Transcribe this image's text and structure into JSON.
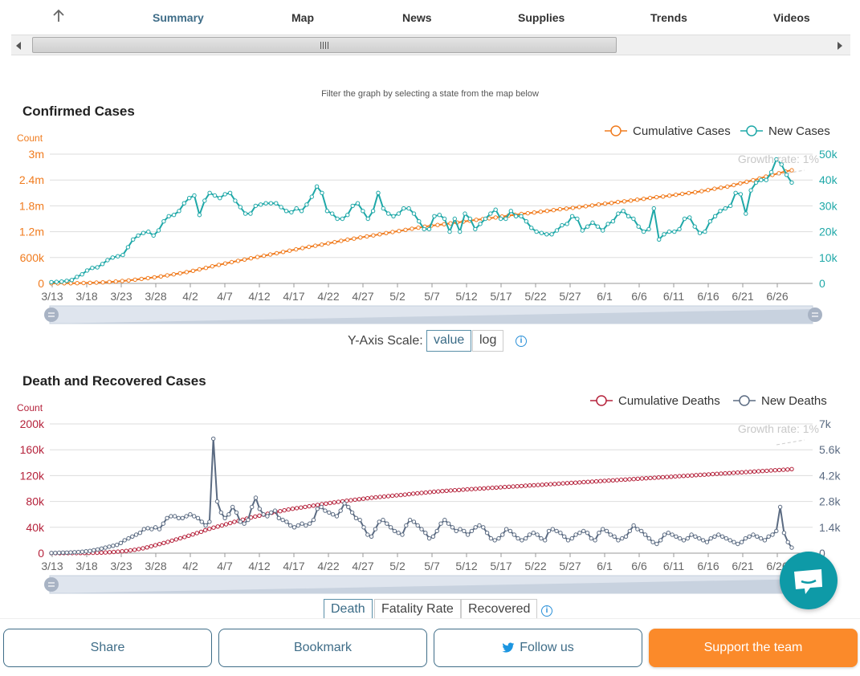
{
  "nav": {
    "items": [
      "Summary",
      "Map",
      "News",
      "Supplies",
      "Trends",
      "Videos"
    ],
    "active": "Summary"
  },
  "hint": "Filter the graph by selecting a state from the map below",
  "colors": {
    "orange": "#f07b1e",
    "teal": "#1fa8a8",
    "crimson": "#b5223b",
    "slate": "#5b6b82",
    "nav_active": "#3f6d88",
    "support": "#fb8a2a"
  },
  "confirmed": {
    "title": "Confirmed Cases",
    "legend": [
      "Cumulative Cases",
      "New Cases"
    ],
    "left_axis_title": "Count",
    "left_ticks": [
      "3m",
      "2.4m",
      "1.8m",
      "1.2m",
      "600k",
      "0"
    ],
    "right_ticks": [
      "50k",
      "40k",
      "30k",
      "20k",
      "10k",
      "0"
    ],
    "growth_label": "Growth rate: 1%",
    "y_scale_label": "Y-Axis Scale:",
    "y_scale_options": [
      "value",
      "log"
    ],
    "y_scale_selected": "value"
  },
  "deaths": {
    "title": "Death and Recovered Cases",
    "legend": [
      "Cumulative Deaths",
      "New Deaths"
    ],
    "left_axis_title": "Count",
    "left_ticks": [
      "200k",
      "160k",
      "120k",
      "80k",
      "40k",
      "0"
    ],
    "right_ticks": [
      "7k",
      "5.6k",
      "4.2k",
      "2.8k",
      "1.4k",
      "0"
    ],
    "growth_label": "Growth rate: 1%",
    "tabs": [
      "Death",
      "Fatality Rate",
      "Recovered"
    ],
    "tab_selected": "Death"
  },
  "x_ticks": [
    "3/13",
    "3/18",
    "3/23",
    "3/28",
    "4/2",
    "4/7",
    "4/12",
    "4/17",
    "4/22",
    "4/27",
    "5/2",
    "5/7",
    "5/12",
    "5/17",
    "5/22",
    "5/27",
    "6/1",
    "6/6",
    "6/11",
    "6/16",
    "6/21",
    "6/26"
  ],
  "chart_data": [
    {
      "type": "line",
      "title": "Confirmed Cases",
      "x_start": "3/13",
      "x_end": "6/30",
      "series": [
        {
          "name": "Cumulative Cases",
          "axis": "left",
          "ylim": [
            0,
            3000000
          ],
          "values": [
            2000,
            2500,
            3500,
            4500,
            6000,
            9000,
            13000,
            18000,
            25000,
            33000,
            43000,
            55000,
            69000,
            86000,
            104000,
            123000,
            142000,
            163000,
            186000,
            210000,
            235000,
            263000,
            293000,
            326000,
            360000,
            396000,
            431000,
            462000,
            493000,
            524000,
            554000,
            584000,
            613000,
            641000,
            670000,
            700000,
            731000,
            760000,
            790000,
            820000,
            847000,
            874000,
            900000,
            929000,
            958000,
            988000,
            1015000,
            1040000,
            1065000,
            1090000,
            1115000,
            1140000,
            1168000,
            1193000,
            1217000,
            1243000,
            1269000,
            1293000,
            1318000,
            1339000,
            1357000,
            1374000,
            1393000,
            1413000,
            1435000,
            1456000,
            1475000,
            1491000,
            1511000,
            1530000,
            1552000,
            1572000,
            1592000,
            1611000,
            1629000,
            1646000,
            1664000,
            1683000,
            1702000,
            1721000,
            1737000,
            1753000,
            1772000,
            1791000,
            1810000,
            1832000,
            1851000,
            1867000,
            1890000,
            1904000,
            1923000,
            1944000,
            1962000,
            1983000,
            2001000,
            2017000,
            2036000,
            2057000,
            2077000,
            2097000,
            2114000,
            2141000,
            2168000,
            2196000,
            2222000,
            2246000,
            2283000,
            2321000,
            2357000,
            2394000,
            2435000,
            2481000,
            2518000,
            2557000,
            2600000,
            2625000
          ]
        },
        {
          "name": "New Cases",
          "axis": "right",
          "ylim": [
            0,
            50000
          ],
          "values": [
            500,
            600,
            700,
            1000,
            1300,
            2500,
            3500,
            5000,
            6000,
            6200,
            7500,
            9000,
            10000,
            10500,
            11000,
            14000,
            17000,
            18500,
            19500,
            20000,
            18500,
            20500,
            24000,
            26000,
            26500,
            28000,
            31000,
            33000,
            34000,
            26500,
            32000,
            35000,
            34000,
            33000,
            34500,
            35000,
            32000,
            29500,
            27000,
            27000,
            30000,
            30500,
            31000,
            31000,
            31000,
            29500,
            28000,
            27500,
            29000,
            28000,
            30500,
            33500,
            37500,
            35000,
            28000,
            27000,
            25000,
            25000,
            26500,
            30000,
            31000,
            28000,
            25000,
            28000,
            35000,
            29000,
            27000,
            26000,
            27000,
            29000,
            29000,
            27000,
            24000,
            21000,
            21000,
            26000,
            26500,
            25000,
            20000,
            25000,
            20000,
            27000,
            25000,
            21000,
            23000,
            25000,
            27000,
            28500,
            25000,
            25000,
            28000,
            26000,
            26000,
            24000,
            21500,
            20000,
            19500,
            19000,
            19000,
            20500,
            22500,
            23000,
            26000,
            25000,
            20500,
            22000,
            23500,
            22000,
            20500,
            23000,
            24000,
            27000,
            28000,
            26000,
            25000,
            22000,
            20000,
            21000,
            29000,
            17000,
            19000,
            20000,
            20000,
            21000,
            25000,
            25500,
            22000,
            19500,
            20000,
            24000,
            26000,
            28000,
            29000,
            30000,
            35000,
            34500,
            27000,
            36000,
            39000,
            40000,
            40000,
            43000,
            48000,
            46000,
            42000,
            39000
          ]
        }
      ],
      "y_axes": {
        "left": [
          0,
          3000000
        ],
        "right": [
          0,
          50000
        ]
      },
      "legend_position": "top-right",
      "grid": true,
      "annotation": "Growth rate: 1%"
    },
    {
      "type": "line",
      "title": "Death and Recovered Cases",
      "x_start": "3/13",
      "x_end": "6/30",
      "series": [
        {
          "name": "Cumulative Deaths",
          "axis": "left",
          "ylim": [
            0,
            200000
          ],
          "values": [
            40,
            50,
            60,
            70,
            90,
            110,
            150,
            200,
            270,
            370,
            500,
            650,
            850,
            1100,
            1450,
            1850,
            2300,
            2850,
            3500,
            4300,
            5200,
            6300,
            7500,
            9000,
            10700,
            12300,
            14000,
            15800,
            17400,
            19400,
            21300,
            23100,
            25000,
            27000,
            28900,
            31000,
            33000,
            35500,
            37600,
            39500,
            41200,
            42800,
            44700,
            46600,
            48400,
            50000,
            51800,
            53600,
            55200,
            56600,
            58000,
            59500,
            61000,
            62500,
            63800,
            65000,
            66300,
            67600,
            68700,
            69700,
            70600,
            71600,
            72600,
            73600,
            74700,
            75800,
            76700,
            77600,
            78500,
            79400,
            80300,
            81100,
            81900,
            82700,
            83500,
            84200,
            85000,
            85700,
            86400,
            87000,
            87600,
            88200,
            88800,
            89400,
            90000,
            90600,
            91300,
            92000,
            92600,
            93200,
            93800,
            94400,
            95000,
            95500,
            96000,
            96500,
            97000,
            97400,
            97800,
            98200,
            98700,
            99100,
            99500,
            99900,
            100300,
            100700,
            101100,
            101500,
            101900,
            102300,
            102700,
            103100,
            103500,
            103900,
            104300,
            104700,
            105100,
            105500,
            105900,
            106300,
            106700,
            107100,
            107500,
            107900,
            108300,
            108700,
            109100,
            109500,
            109900,
            110300,
            110700,
            111100,
            111500,
            111900,
            112300,
            112700,
            113100,
            113500,
            113900,
            114300,
            114700,
            115100,
            115500,
            115900,
            116300,
            116700,
            117100,
            117500,
            117900,
            118300,
            118700,
            119100,
            119500,
            119900,
            120300,
            120700,
            121100,
            121500,
            121900,
            122300,
            122700,
            123100,
            123500,
            123900,
            124300,
            124700,
            125100,
            125500,
            125900,
            126300,
            126700,
            127100,
            127500,
            127900,
            128300,
            128700,
            129100,
            129500,
            130000
          ]
        },
        {
          "name": "New Deaths",
          "axis": "right",
          "ylim": [
            0,
            7000
          ],
          "values": [
            10,
            15,
            20,
            30,
            30,
            40,
            50,
            60,
            80,
            100,
            120,
            160,
            200,
            250,
            300,
            350,
            400,
            450,
            550,
            700,
            800,
            900,
            1000,
            1100,
            1300,
            1350,
            1300,
            1400,
            1300,
            1600,
            1900,
            2000,
            2000,
            1900,
            1900,
            2000,
            2100,
            2000,
            1900,
            1700,
            1500,
            1700,
            6200,
            2800,
            2200,
            1900,
            2100,
            2500,
            2200,
            1700,
            1600,
            1800,
            2500,
            3000,
            2400,
            2100,
            2000,
            2200,
            2300,
            1900,
            1800,
            1700,
            1500,
            1400,
            1500,
            1600,
            1500,
            1600,
            1800,
            2400,
            2500,
            2300,
            2200,
            2100,
            2000,
            2300,
            2700,
            2500,
            2200,
            1900,
            1800,
            1400,
            1000,
            900,
            1300,
            1700,
            1800,
            1600,
            1400,
            1200,
            1100,
            1000,
            1500,
            1800,
            1700,
            1500,
            1300,
            1100,
            800,
            900,
            1200,
            1600,
            1800,
            1600,
            1400,
            1200,
            1300,
            1200,
            1000,
            1200,
            1400,
            1500,
            1400,
            1100,
            800,
            700,
            800,
            1000,
            1300,
            1200,
            1000,
            800,
            700,
            800,
            1000,
            1100,
            1000,
            800,
            700,
            1200,
            1300,
            1200,
            1100,
            900,
            700,
            800,
            1000,
            1100,
            1200,
            1100,
            800,
            700,
            1100,
            1300,
            1200,
            1000,
            900,
            700,
            800,
            900,
            1200,
            1500,
            1300,
            1200,
            1000,
            800,
            600,
            500,
            700,
            1000,
            1100,
            1000,
            900,
            800,
            700,
            800,
            1000,
            900,
            800,
            700,
            600,
            800,
            900,
            1000,
            900,
            800,
            700,
            600,
            500,
            600,
            800,
            900,
            1000,
            900,
            800,
            700,
            900,
            1000,
            1200,
            2500,
            1100,
            600,
            300
          ]
        }
      ],
      "y_axes": {
        "left": [
          0,
          200000
        ],
        "right": [
          0,
          7000
        ]
      },
      "legend_position": "top-right",
      "grid": true,
      "annotation": "Growth rate: 1%"
    }
  ],
  "bottom": {
    "share": "Share",
    "bookmark": "Bookmark",
    "follow": "Follow us",
    "support": "Support the team"
  }
}
